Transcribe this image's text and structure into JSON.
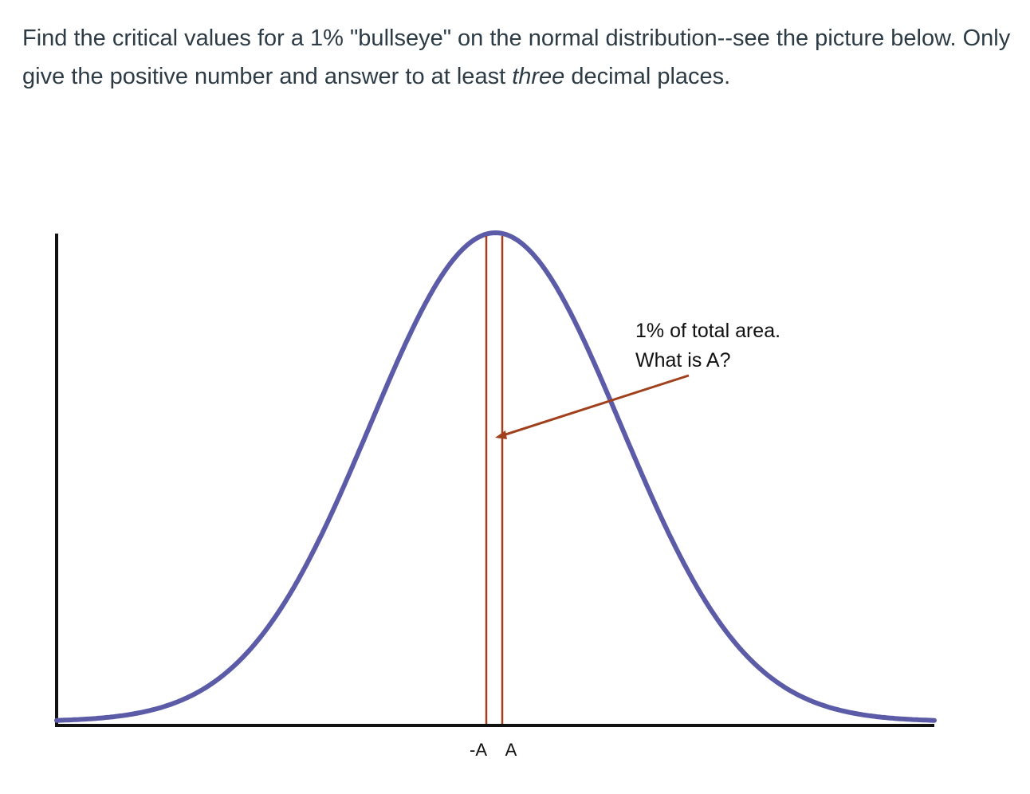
{
  "question": {
    "part1": "Find the critical values for a 1% \"bullseye\" on the normal distribution--see the picture below.  Only give the positive number and answer to at least ",
    "emphasis": "three",
    "part2": " decimal places."
  },
  "chart_data": {
    "type": "line",
    "series": [
      {
        "values": "standard normal density curve (bell shape), mean 0"
      }
    ],
    "xlim": [
      -3.5,
      3.5
    ],
    "shaded_region": {
      "from": "-A",
      "to": "A",
      "area": "1%"
    },
    "tick_labels": [
      "-A",
      "A"
    ],
    "annotation": {
      "line1": "1% of total area.",
      "line2": "What is A?"
    },
    "grid": false,
    "colors": {
      "curve": "#5b5ba8",
      "boundary_lines": "#a0401c",
      "pointer": "#a0401c",
      "axes": "#111111"
    }
  }
}
